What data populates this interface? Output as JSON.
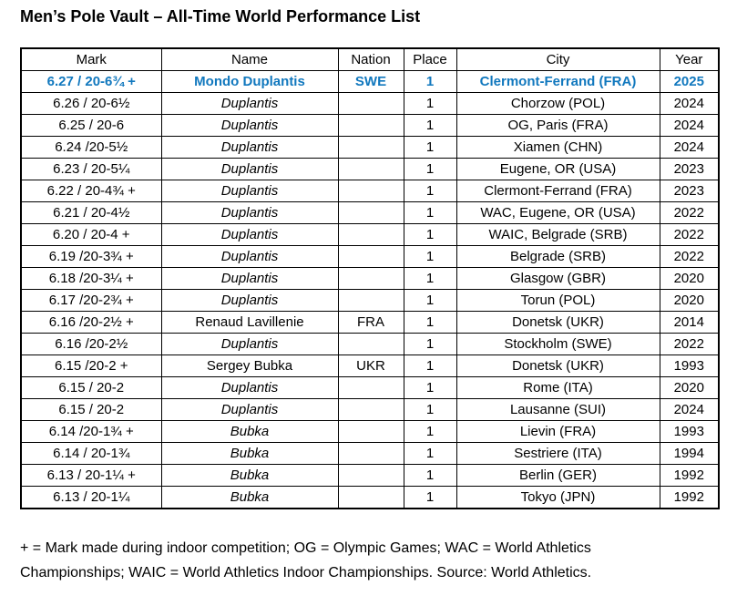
{
  "title": "Men’s Pole Vault – All-Time World Performance List",
  "colors": {
    "highlight_blue": "#1178BE",
    "border": "#000000",
    "text": "#000000",
    "background": "#FFFFFF"
  },
  "table": {
    "headers": [
      "Mark",
      "Name",
      "Nation",
      "Place",
      "City",
      "Year"
    ],
    "rows": [
      {
        "mark": "6.27 / 20-6¾ +",
        "name": "Mondo Duplantis",
        "nation": "SWE",
        "place": "1",
        "city": "Clermont-Ferrand (FRA)",
        "year": "2025",
        "highlight": true,
        "name_italic": false
      },
      {
        "mark": "6.26 / 20-6½",
        "name": "Duplantis",
        "nation": "",
        "place": "1",
        "city": "Chorzow (POL)",
        "year": "2024",
        "highlight": false,
        "name_italic": true
      },
      {
        "mark": "6.25 / 20-6",
        "name": "Duplantis",
        "nation": "",
        "place": "1",
        "city": "OG, Paris (FRA)",
        "year": "2024",
        "highlight": false,
        "name_italic": true
      },
      {
        "mark": "6.24 /20-5½",
        "name": "Duplantis",
        "nation": "",
        "place": "1",
        "city": "Xiamen (CHN)",
        "year": "2024",
        "highlight": false,
        "name_italic": true
      },
      {
        "mark": "6.23 / 20-5¼",
        "name": "Duplantis",
        "nation": "",
        "place": "1",
        "city": "Eugene, OR (USA)",
        "year": "2023",
        "highlight": false,
        "name_italic": true
      },
      {
        "mark": "6.22 / 20-4¾ +",
        "name": "Duplantis",
        "nation": "",
        "place": "1",
        "city": "Clermont-Ferrand (FRA)",
        "year": "2023",
        "highlight": false,
        "name_italic": true
      },
      {
        "mark": "6.21 / 20-4½",
        "name": "Duplantis",
        "nation": "",
        "place": "1",
        "city": "WAC, Eugene, OR (USA)",
        "year": "2022",
        "highlight": false,
        "name_italic": true
      },
      {
        "mark": "6.20 / 20-4 +",
        "name": "Duplantis",
        "nation": "",
        "place": "1",
        "city": "WAIC, Belgrade (SRB)",
        "year": "2022",
        "highlight": false,
        "name_italic": true
      },
      {
        "mark": "6.19 /20-3¾ +",
        "name": "Duplantis",
        "nation": "",
        "place": "1",
        "city": "Belgrade (SRB)",
        "year": "2022",
        "highlight": false,
        "name_italic": true
      },
      {
        "mark": "6.18 /20-3¼ +",
        "name": "Duplantis",
        "nation": "",
        "place": "1",
        "city": "Glasgow (GBR)",
        "year": "2020",
        "highlight": false,
        "name_italic": true
      },
      {
        "mark": "6.17 /20-2¾ +",
        "name": "Duplantis",
        "nation": "",
        "place": "1",
        "city": "Torun (POL)",
        "year": "2020",
        "highlight": false,
        "name_italic": true
      },
      {
        "mark": "6.16 /20-2½ +",
        "name": "Renaud Lavillenie",
        "nation": "FRA",
        "place": "1",
        "city": "Donetsk (UKR)",
        "year": "2014",
        "highlight": false,
        "name_italic": false
      },
      {
        "mark": "6.16 /20-2½",
        "name": "Duplantis",
        "nation": "",
        "place": "1",
        "city": "Stockholm (SWE)",
        "year": "2022",
        "highlight": false,
        "name_italic": true
      },
      {
        "mark": "6.15 /20-2 +",
        "name": "Sergey Bubka",
        "nation": "UKR",
        "place": "1",
        "city": "Donetsk (UKR)",
        "year": "1993",
        "highlight": false,
        "name_italic": false
      },
      {
        "mark": "6.15 / 20-2",
        "name": "Duplantis",
        "nation": "",
        "place": "1",
        "city": "Rome (ITA)",
        "year": "2020",
        "highlight": false,
        "name_italic": true
      },
      {
        "mark": "6.15 / 20-2",
        "name": "Duplantis",
        "nation": "",
        "place": "1",
        "city": "Lausanne (SUI)",
        "year": "2024",
        "highlight": false,
        "name_italic": true
      },
      {
        "mark": "6.14 /20-1¾ +",
        "name": "Bubka",
        "nation": "",
        "place": "1",
        "city": "Lievin (FRA)",
        "year": "1993",
        "highlight": false,
        "name_italic": true
      },
      {
        "mark": "6.14 / 20-1¾",
        "name": "Bubka",
        "nation": "",
        "place": "1",
        "city": "Sestriere (ITA)",
        "year": "1994",
        "highlight": false,
        "name_italic": true
      },
      {
        "mark": "6.13 / 20-1¼ +",
        "name": "Bubka",
        "nation": "",
        "place": "1",
        "city": "Berlin (GER)",
        "year": "1992",
        "highlight": false,
        "name_italic": true
      },
      {
        "mark": "6.13 / 20-1¼",
        "name": "Bubka",
        "nation": "",
        "place": "1",
        "city": "Tokyo (JPN)",
        "year": "1992",
        "highlight": false,
        "name_italic": true
      }
    ]
  },
  "footnote": "+ = Mark made during indoor competition; OG = Olympic Games; WAC = World Athletics Championships; WAIC = World Athletics Indoor Championships. Source: World Athletics."
}
